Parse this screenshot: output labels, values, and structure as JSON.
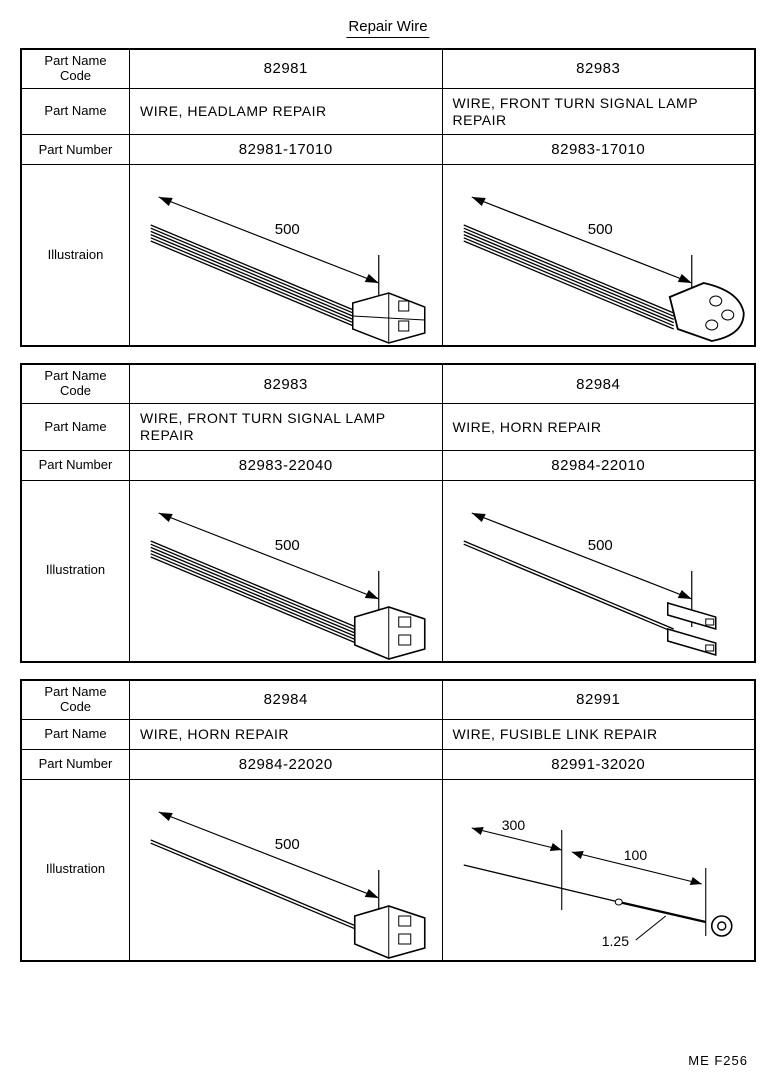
{
  "title": "Repair Wire",
  "reference": "ME  F256",
  "labels": {
    "code": "Part Name\nCode",
    "name": "Part Name",
    "number": "Part Number",
    "illus": "Illustraion",
    "illus2": "Illustration"
  },
  "blocks": [
    {
      "illus_label_key": "illus",
      "left": {
        "code": "82981",
        "name": "WIRE, HEADLAMP  REPAIR",
        "number": "82981-17010",
        "dim": "500",
        "wire_count": 6,
        "connector": "rect3"
      },
      "right": {
        "code": "82983",
        "name": "WIRE, FRONT TURN SIGNAL LAMP  REPAIR",
        "number": "82983-17010",
        "dim": "500",
        "wire_count": 6,
        "connector": "tri"
      }
    },
    {
      "illus_label_key": "illus2",
      "left": {
        "code": "82983",
        "name": "WIRE, FRONT  TURN  SIGNAL LAMP  REPAIR",
        "number": "82983-22040",
        "dim": "500",
        "wire_count": 6,
        "connector": "rect2"
      },
      "right": {
        "code": "82984",
        "name": "WIRE, HORN  REPAIR",
        "number": "82984-22010",
        "dim": "500",
        "wire_count": 2,
        "connector": "two_flat"
      }
    },
    {
      "illus_label_key": "illus2",
      "left": {
        "code": "82984",
        "name": "WIRE, HORN  REPAIR",
        "number": "82984-22020",
        "dim": "500",
        "wire_count": 2,
        "connector": "rect2"
      },
      "right": {
        "code": "82991",
        "name": "WIRE, FUSIBLE  LINK  REPAIR",
        "number": "82991-32020",
        "dims": [
          "300",
          "100",
          "1.25"
        ],
        "wire_count": 1,
        "connector": "fuse"
      }
    }
  ],
  "colors": {
    "stroke": "#000000",
    "bg": "#ffffff"
  }
}
